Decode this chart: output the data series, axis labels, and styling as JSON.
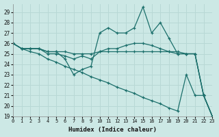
{
  "xlabel": "Humidex (Indice chaleur)",
  "bg_color": "#cce8e5",
  "grid_color": "#b8d8d5",
  "line_color": "#1a6e6a",
  "xlim": [
    0,
    23
  ],
  "ylim": [
    19,
    29.8
  ],
  "yticks": [
    19,
    20,
    21,
    22,
    23,
    24,
    25,
    26,
    27,
    28,
    29
  ],
  "xticks": [
    0,
    1,
    2,
    3,
    4,
    5,
    6,
    7,
    8,
    9,
    10,
    11,
    12,
    13,
    14,
    15,
    16,
    17,
    18,
    19,
    20,
    21,
    22,
    23
  ],
  "series": [
    [
      26,
      25.5,
      25.5,
      25.5,
      25.2,
      25.2,
      24.5,
      23,
      23.5,
      23.8,
      27,
      27.5,
      27,
      27,
      27.5,
      29.5,
      27,
      28,
      26.5,
      25,
      25,
      25,
      21,
      19
    ],
    [
      26,
      25.5,
      25.5,
      25.5,
      25.2,
      25.2,
      25.2,
      25.0,
      25.0,
      25.0,
      25.2,
      25.2,
      25.2,
      25.2,
      25.2,
      25.2,
      25.2,
      25.2,
      25.2,
      25.2,
      25.0,
      25.0,
      21,
      19
    ],
    [
      26,
      25.5,
      25.5,
      25.5,
      25.0,
      25.0,
      24.8,
      24.5,
      24.8,
      24.5,
      25.2,
      25.5,
      25.5,
      25.8,
      26.0,
      26.0,
      25.8,
      25.5,
      25.2,
      25.0,
      25.0,
      25.0,
      21,
      19
    ],
    [
      26,
      25.5,
      25.2,
      25.0,
      24.5,
      24.2,
      23.8,
      23.5,
      23.2,
      22.8,
      22.5,
      22.2,
      21.8,
      21.5,
      21.2,
      20.8,
      20.5,
      20.2,
      19.8,
      19.5,
      23.0,
      21.0,
      21.0,
      19.0
    ]
  ]
}
